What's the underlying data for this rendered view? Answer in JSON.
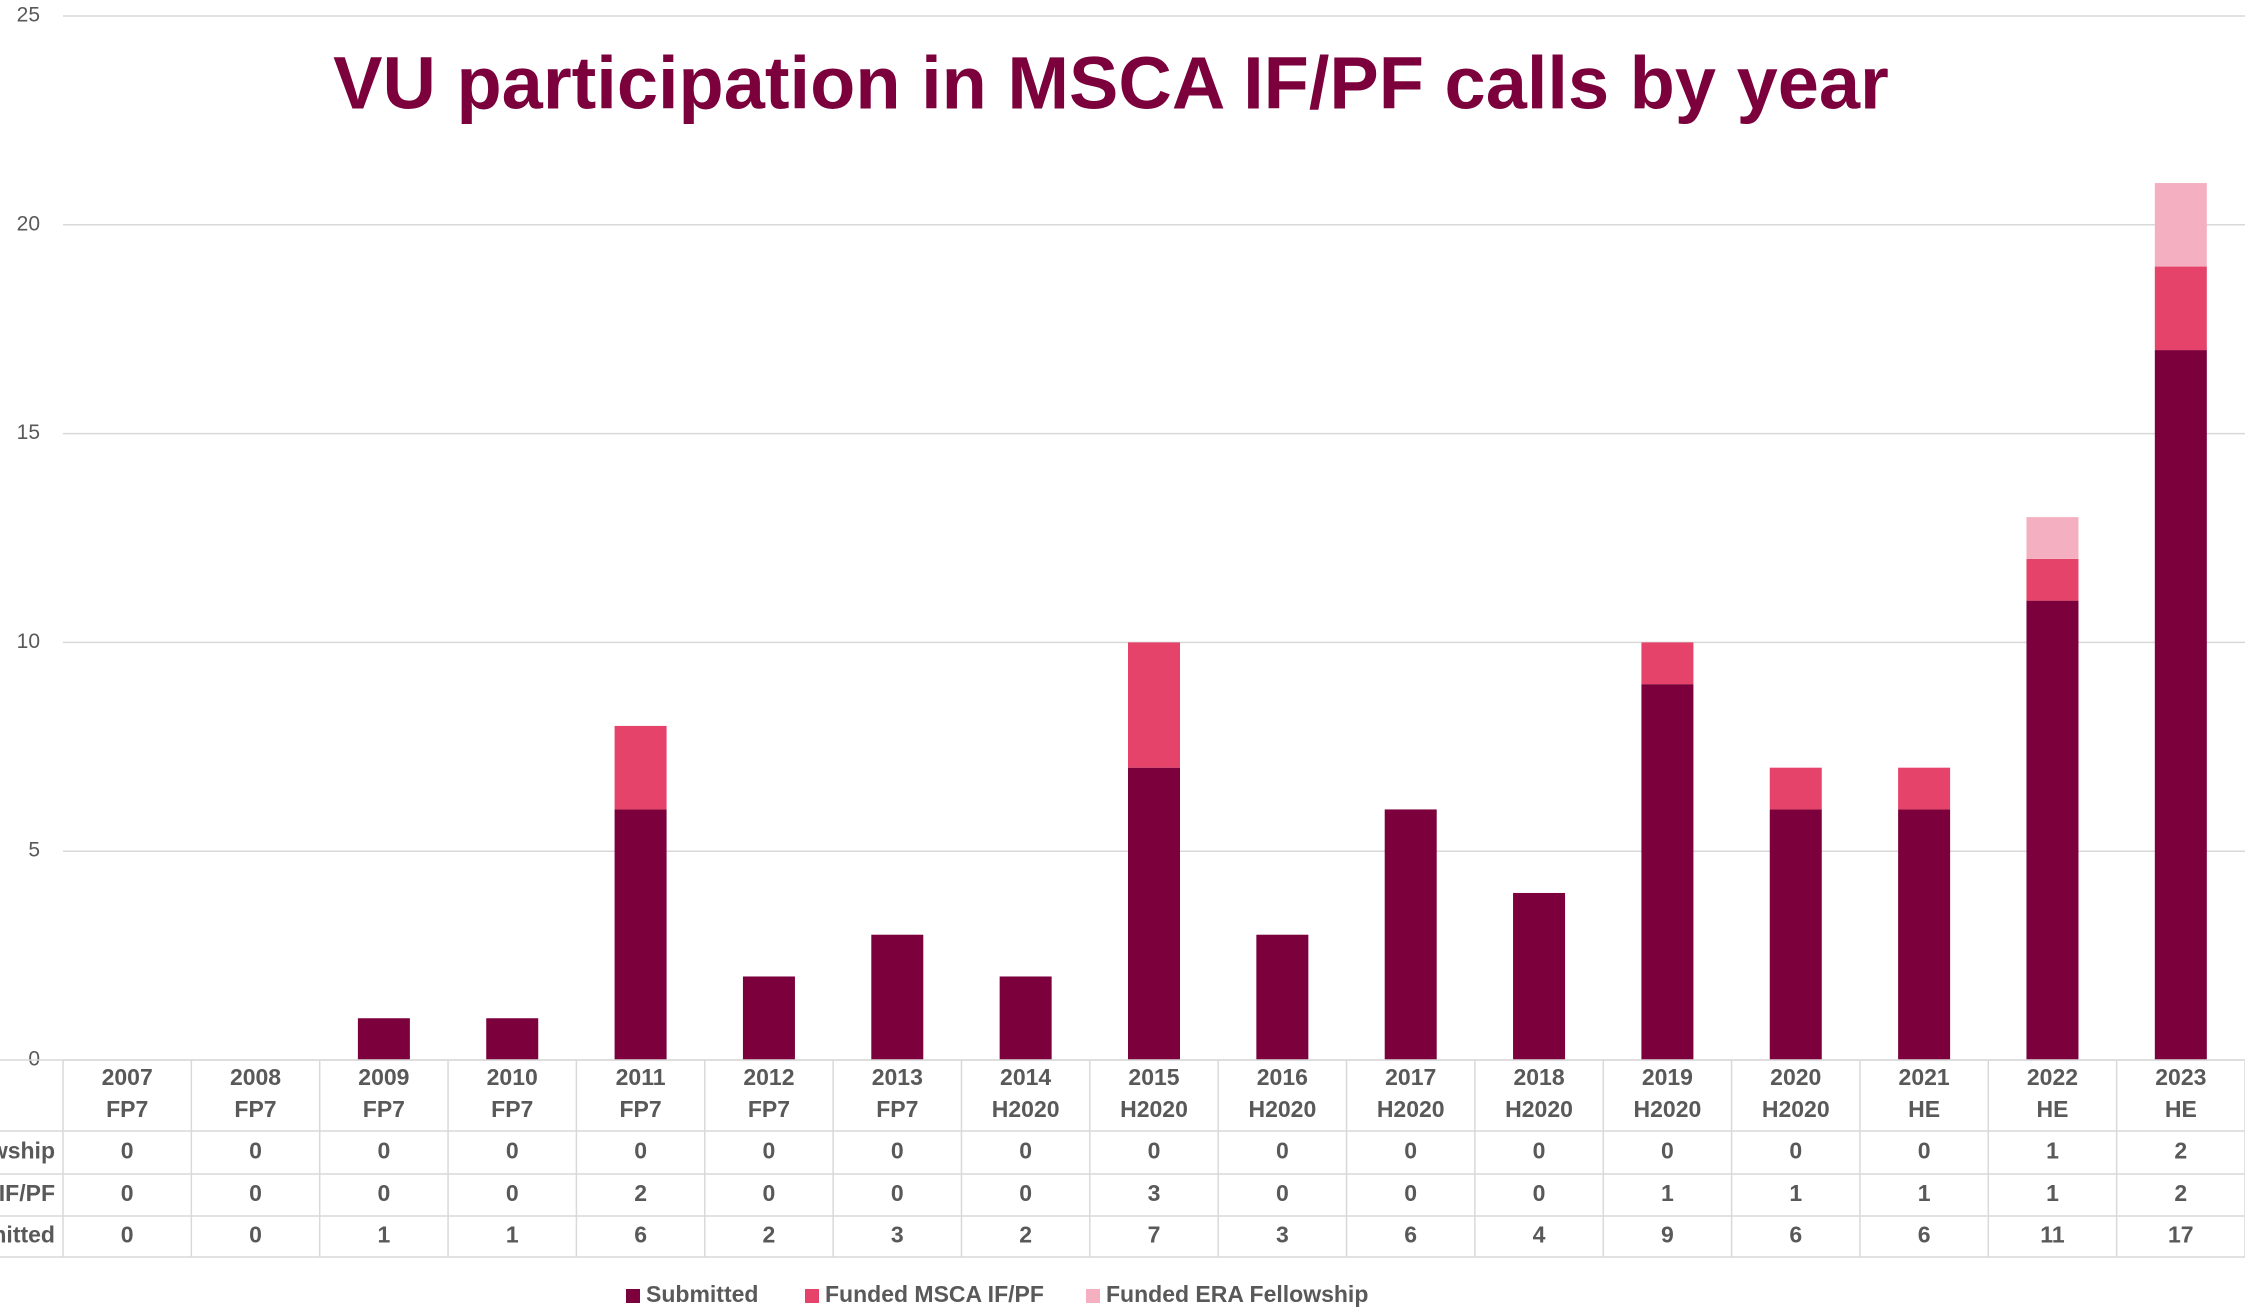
{
  "chart_data": {
    "type": "stacked-bar",
    "title": "VU participation in MSCA IF/PF calls by year",
    "categories": [
      [
        "2007",
        "FP7"
      ],
      [
        "2008",
        "FP7"
      ],
      [
        "2009",
        "FP7"
      ],
      [
        "2010",
        "FP7"
      ],
      [
        "2011",
        "FP7"
      ],
      [
        "2012",
        "FP7"
      ],
      [
        "2013",
        "FP7"
      ],
      [
        "2014",
        "H2020"
      ],
      [
        "2015",
        "H2020"
      ],
      [
        "2016",
        "H2020"
      ],
      [
        "2017",
        "H2020"
      ],
      [
        "2018",
        "H2020"
      ],
      [
        "2019",
        "H2020"
      ],
      [
        "2020",
        "H2020"
      ],
      [
        "2021",
        "HE"
      ],
      [
        "2022",
        "HE"
      ],
      [
        "2023",
        "HE"
      ]
    ],
    "series": [
      {
        "name": "Submitted",
        "color": "#7b003c",
        "values": [
          0,
          0,
          1,
          1,
          6,
          2,
          3,
          2,
          7,
          3,
          6,
          4,
          9,
          6,
          6,
          11,
          17
        ]
      },
      {
        "name": "Funded MSCA IF/PF",
        "color": "#e5436a",
        "values": [
          0,
          0,
          0,
          0,
          2,
          0,
          0,
          0,
          3,
          0,
          0,
          0,
          1,
          1,
          1,
          1,
          2
        ]
      },
      {
        "name": "Funded ERA Fellowship",
        "color": "#f4b0c0",
        "values": [
          0,
          0,
          0,
          0,
          0,
          0,
          0,
          0,
          0,
          0,
          0,
          0,
          0,
          0,
          0,
          1,
          2
        ]
      }
    ],
    "ylim": [
      0,
      25
    ],
    "yticks": [
      0,
      5,
      10,
      15,
      20,
      25
    ],
    "grid": true,
    "legend": "bottom",
    "data_table": true
  }
}
